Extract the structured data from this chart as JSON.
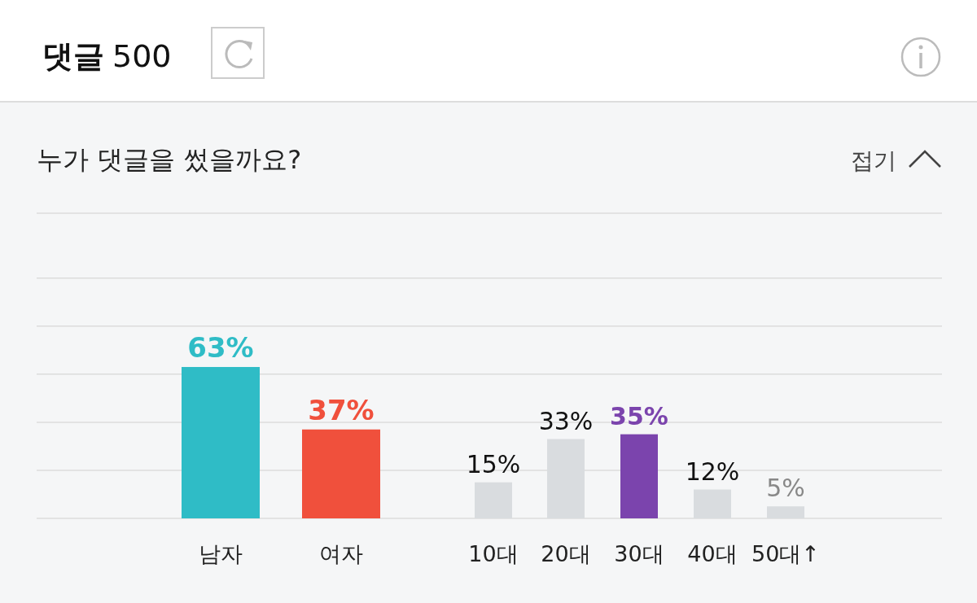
{
  "chart_data": [
    {
      "type": "bar",
      "title": "누가 댓글을 썼을까요?",
      "annotations": [
        "댓글 500",
        "접기"
      ],
      "categories": [
        "남자",
        "여자"
      ],
      "values": [
        63,
        37
      ],
      "colors": [
        "#2fbcc6",
        "#f0503c"
      ],
      "value_labels": [
        "63%",
        "37%"
      ],
      "ylim": [
        0,
        127
      ],
      "yticks": [
        {
          "value": 0,
          "label": null
        },
        {
          "value": 20,
          "label": null
        },
        {
          "value": 40,
          "label": null
        },
        {
          "value": 60,
          "label": null
        },
        {
          "value": 80,
          "label": null
        },
        {
          "value": 100,
          "label": null
        }
      ],
      "tick_labels": "x",
      "grid": "y"
    },
    {
      "type": "bar",
      "categories": [
        "10대",
        "20대",
        "30대",
        "40대",
        "50대↑"
      ],
      "values": [
        15,
        33,
        35,
        12,
        5
      ],
      "colors": [
        "#d9dcdf",
        "#d9dcdf",
        "#7b44ad",
        "#d9dcdf",
        "#d9dcdf"
      ],
      "value_labels": [
        "15%",
        "33%",
        "35%",
        "12%",
        "5%"
      ],
      "ylim": [
        0,
        127
      ],
      "yticks": [
        {
          "value": 0,
          "label": null
        },
        {
          "value": 20,
          "label": null
        },
        {
          "value": 40,
          "label": null
        },
        {
          "value": 60,
          "label": null
        },
        {
          "value": 80,
          "label": null
        },
        {
          "value": 100,
          "label": null
        }
      ],
      "tick_labels": "x",
      "grid": "y"
    }
  ]
}
